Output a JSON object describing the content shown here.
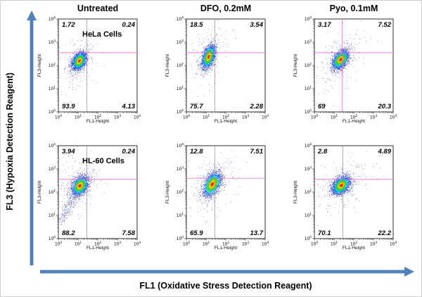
{
  "figure": {
    "y_axis_label": "FL3 (Hypoxia Detection Reagent)",
    "x_axis_label": "FL1 (Oxidative Stress Detection Reagent)",
    "arrow_color": "#4F81BD"
  },
  "chart_data": {
    "type": "scatter",
    "subtype": "flow-cytometry-density-dot-plots",
    "columns": [
      "Untreated",
      "DFO, 0.2mM",
      "Pyo, 0.1mM"
    ],
    "rows": [
      "HeLa Cells",
      "HL-60 Cells"
    ],
    "xlabel": "FL1-Height",
    "ylabel": "FL3-Height",
    "xlim_log10": [
      0,
      4
    ],
    "ylim_log10": [
      0,
      4
    ],
    "log_ticks": [
      0,
      1,
      2,
      3,
      4
    ],
    "gate_color": "#F050C8",
    "density_colors": [
      "#ff1e00",
      "#ffc400",
      "#46d400",
      "#00c8c8",
      "#1464ff",
      "#2830b4"
    ],
    "plots": [
      {
        "row": "HeLa Cells",
        "column": "Untreated",
        "quadrants": {
          "ul": "1.72",
          "ur": "0.24",
          "ll": "93.9",
          "lr": "4.13"
        },
        "gate": {
          "x": 1.45,
          "y": 2.55
        },
        "cluster": {
          "cx": 1.05,
          "cy": 2.2,
          "sx": 0.17,
          "sy": 0.18,
          "rho": 0.35,
          "n": 2200,
          "halo_n": 170
        }
      },
      {
        "row": "HeLa Cells",
        "column": "DFO, 0.2mM",
        "quadrants": {
          "ul": "18.5",
          "ur": "3.54",
          "ll": "75.7",
          "lr": "2.28"
        },
        "gate": {
          "x": 1.45,
          "y": 2.55
        },
        "cluster": {
          "cx": 1.12,
          "cy": 2.38,
          "sx": 0.16,
          "sy": 0.24,
          "rho": 0.45,
          "n": 2200,
          "halo_n": 170
        }
      },
      {
        "row": "HeLa Cells",
        "column": "Pyo, 0.1mM",
        "quadrants": {
          "ul": "3.17",
          "ur": "7.52",
          "ll": "69",
          "lr": "20.3"
        },
        "gate": {
          "x": 1.42,
          "y": 2.55
        },
        "cluster": {
          "cx": 1.32,
          "cy": 2.26,
          "sx": 0.2,
          "sy": 0.2,
          "rho": 0.45,
          "n": 2200,
          "halo_n": 170
        }
      },
      {
        "row": "HL-60 Cells",
        "column": "Untreated",
        "quadrants": {
          "ul": "3.94",
          "ur": "0.24",
          "ll": "88.2",
          "lr": "7.58"
        },
        "gate": {
          "x": 1.45,
          "y": 2.55
        },
        "cluster": {
          "cx": 1.08,
          "cy": 2.28,
          "sx": 0.2,
          "sy": 0.2,
          "rho": 0.3,
          "n": 2000,
          "halo_n": 200
        },
        "tail": {
          "dx": -0.95,
          "dy": -1.5,
          "spread": 0.13,
          "n": 260
        }
      },
      {
        "row": "HL-60 Cells",
        "column": "DFO, 0.2mM",
        "quadrants": {
          "ul": "12.8",
          "ur": "7.51",
          "ll": "65.9",
          "lr": "13.7"
        },
        "gate": {
          "x": 1.45,
          "y": 2.6
        },
        "cluster": {
          "cx": 1.3,
          "cy": 2.35,
          "sx": 0.22,
          "sy": 0.25,
          "rho": 0.45,
          "n": 2200,
          "halo_n": 200
        }
      },
      {
        "row": "HL-60 Cells",
        "column": "Pyo, 0.1mM",
        "quadrants": {
          "ul": "2.8",
          "ur": "4.89",
          "ll": "70.1",
          "lr": "22.2"
        },
        "gate": {
          "x": 1.45,
          "y": 2.55
        },
        "cluster": {
          "cx": 1.35,
          "cy": 2.3,
          "sx": 0.22,
          "sy": 0.19,
          "rho": 0.4,
          "n": 2300,
          "halo_n": 200
        }
      }
    ]
  }
}
